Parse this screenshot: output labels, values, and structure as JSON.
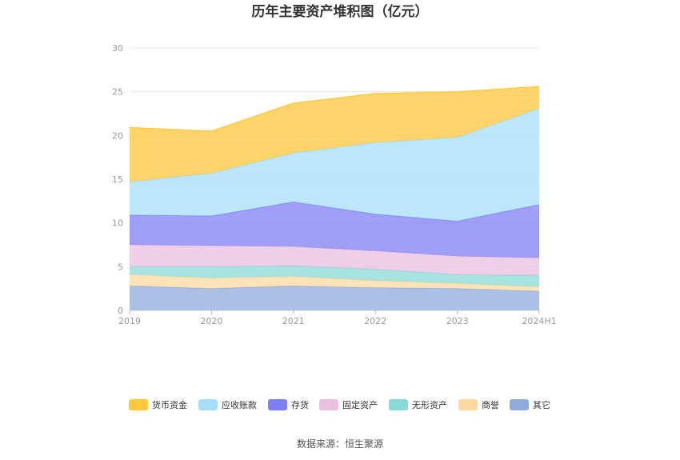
{
  "chart_data": {
    "type": "area",
    "stacked": true,
    "title": "历年主要资产堆积图（亿元）",
    "categories": [
      "2019",
      "2020",
      "2021",
      "2022",
      "2023",
      "2024H1"
    ],
    "ylim": [
      0,
      30
    ],
    "yticks": [
      "0",
      "5",
      "10",
      "15",
      "20",
      "25",
      "30"
    ],
    "grid": true,
    "legend_position": "bottom",
    "series": [
      {
        "name": "其它",
        "color": "#8fabdc",
        "values": [
          2.8,
          2.5,
          2.8,
          2.6,
          2.5,
          2.2
        ]
      },
      {
        "name": "商誉",
        "color": "#fdd9a0",
        "values": [
          1.3,
          1.2,
          1.1,
          0.8,
          0.6,
          0.5
        ]
      },
      {
        "name": "无形资产",
        "color": "#8ad9d6",
        "values": [
          0.9,
          1.3,
          1.2,
          1.3,
          1.0,
          1.3
        ]
      },
      {
        "name": "固定资产",
        "color": "#eabfdf",
        "values": [
          2.5,
          2.4,
          2.2,
          2.1,
          2.1,
          2.0
        ]
      },
      {
        "name": "存货",
        "color": "#7f7ff4",
        "values": [
          3.4,
          3.4,
          5.1,
          4.2,
          4.0,
          6.1
        ]
      },
      {
        "name": "应收账款",
        "color": "#a6ddf7",
        "values": [
          3.8,
          4.9,
          5.6,
          8.2,
          9.6,
          11.0
        ]
      },
      {
        "name": "货币资金",
        "color": "#ffc73a",
        "values": [
          6.2,
          4.8,
          5.7,
          5.6,
          5.2,
          2.5
        ]
      }
    ],
    "legend_order": [
      "货币资金",
      "应收账款",
      "存货",
      "固定资产",
      "无形资产",
      "商誉",
      "其它"
    ]
  },
  "footer": {
    "source": "数据来源：恒生聚源"
  }
}
